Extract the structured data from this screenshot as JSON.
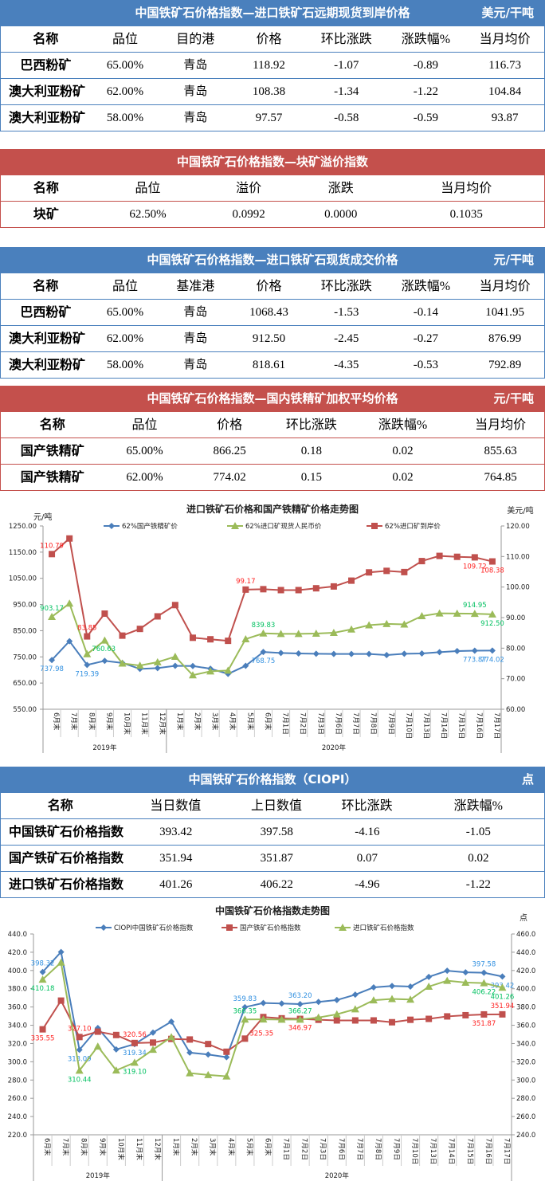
{
  "tables": [
    {
      "theme": "blue",
      "title": "中国铁矿石价格指数—进口铁矿石远期现货到岸价格",
      "unit": "美元/干吨",
      "columns": [
        "名称",
        "品位",
        "目的港",
        "价格",
        "环比涨跌",
        "涨跌幅%",
        "当月均价"
      ],
      "rows": [
        [
          "巴西粉矿",
          "65.00%",
          "青岛",
          "118.92",
          "-1.07",
          "-0.89",
          "116.73"
        ],
        [
          "澳大利亚粉矿",
          "62.00%",
          "青岛",
          "108.38",
          "-1.34",
          "-1.22",
          "104.84"
        ],
        [
          "澳大利亚粉矿",
          "58.00%",
          "青岛",
          "97.57",
          "-0.58",
          "-0.59",
          "93.87"
        ]
      ]
    },
    {
      "theme": "red",
      "title": "中国铁矿石价格指数—块矿溢价指数",
      "unit": "",
      "columns": [
        "名称",
        "品位",
        "溢价",
        "涨跌",
        "当月均价"
      ],
      "rows": [
        [
          "块矿",
          "62.50%",
          "0.0992",
          "0.0000",
          "0.1035"
        ]
      ]
    },
    {
      "theme": "blue",
      "title": "中国铁矿石价格指数—进口铁矿石现货成交价格",
      "unit": "元/干吨",
      "columns": [
        "名称",
        "品位",
        "基准港",
        "价格",
        "环比涨跌",
        "涨跌幅%",
        "当月均价"
      ],
      "rows": [
        [
          "巴西粉矿",
          "65.00%",
          "青岛",
          "1068.43",
          "-1.53",
          "-0.14",
          "1041.95"
        ],
        [
          "澳大利亚粉矿",
          "62.00%",
          "青岛",
          "912.50",
          "-2.45",
          "-0.27",
          "876.99"
        ],
        [
          "澳大利亚粉矿",
          "58.00%",
          "青岛",
          "818.61",
          "-4.35",
          "-0.53",
          "792.89"
        ]
      ]
    },
    {
      "theme": "red",
      "title": "中国铁矿石价格指数—国内铁精矿加权平均价格",
      "unit": "元/干吨",
      "columns": [
        "名称",
        "品位",
        "价格",
        "环比涨跌",
        "涨跌幅%",
        "当月均价"
      ],
      "rows": [
        [
          "国产铁精矿",
          "65.00%",
          "866.25",
          "0.18",
          "0.02",
          "855.63"
        ],
        [
          "国产铁精矿",
          "62.00%",
          "774.02",
          "0.15",
          "0.02",
          "764.85"
        ]
      ]
    },
    {
      "theme": "blue",
      "title": "中国铁矿石价格指数（CIOPI）",
      "unit": "点",
      "columns": [
        "名称",
        "当日数值",
        "上日数值",
        "环比涨跌",
        "涨跌幅%"
      ],
      "rows": [
        [
          "中国铁矿石价格指数",
          "393.42",
          "397.58",
          "-4.16",
          "-1.05"
        ],
        [
          "国产铁矿石价格指数",
          "351.94",
          "351.87",
          "0.07",
          "0.02"
        ],
        [
          "进口铁矿石价格指数",
          "401.26",
          "406.22",
          "-4.96",
          "-1.22"
        ]
      ]
    }
  ],
  "chart_data": [
    {
      "type": "line",
      "title": "进口铁矿石价格和国产铁精矿价格走势图",
      "ylabel": "元/吨",
      "y2label": "美元/吨",
      "ylim": [
        550,
        1250
      ],
      "yticks": [
        "550.00",
        "650.00",
        "750.00",
        "850.00",
        "950.00",
        "1050.00",
        "1150.00",
        "1250.00"
      ],
      "y2lim": [
        60,
        120
      ],
      "y2ticks": [
        "60.00",
        "70.00",
        "80.00",
        "90.00",
        "100.00",
        "110.00",
        "120.00"
      ],
      "categories": [
        "6月末",
        "7月末",
        "8月末",
        "9月末",
        "10月末",
        "11月末",
        "12月末",
        "1月末",
        "2月末",
        "3月末",
        "4月末",
        "5月末",
        "6月末",
        "7月1日",
        "7月2日",
        "7月3日",
        "7月6日",
        "7月7日",
        "7月8日",
        "7月9日",
        "7月10日",
        "7月13日",
        "7月14日",
        "7月15日",
        "7月16日",
        "7月17日"
      ],
      "groups": [
        {
          "label": "2019年",
          "from": 0,
          "to": 6
        },
        {
          "label": "2020年",
          "from": 7,
          "to": 25
        }
      ],
      "legend_position": "top",
      "series": [
        {
          "name": "62%国产铁精矿价",
          "axis": "left",
          "color": "#4a7ebb",
          "label_color": "#2f8fe0",
          "marker": "diamond",
          "values": [
            737.98,
            810,
            719.39,
            735,
            727,
            704,
            707,
            716,
            715,
            705,
            685,
            716,
            768.75,
            765,
            763,
            762,
            761,
            761,
            761,
            757,
            762,
            763,
            768,
            772,
            773.87,
            774.02
          ],
          "labels": [
            {
              "i": 0,
              "text": "737.98",
              "pos": "below"
            },
            {
              "i": 2,
              "text": "719.39",
              "pos": "below"
            },
            {
              "i": 12,
              "text": "768.75",
              "pos": "below"
            },
            {
              "i": 24,
              "text": "773.87",
              "pos": "below"
            },
            {
              "i": 25,
              "text": "774.02",
              "pos": "below"
            }
          ]
        },
        {
          "name": "62%进口矿现货人民币价",
          "axis": "left",
          "color": "#9bbb59",
          "label_color": "#00c060",
          "marker": "triangle",
          "values": [
            903.17,
            954,
            760.63,
            813,
            725,
            717,
            730,
            751,
            680,
            695,
            698,
            818,
            839.83,
            838,
            838,
            839,
            842,
            855,
            871,
            876,
            874,
            906,
            916.5,
            915.5,
            914.95,
            912.5
          ],
          "labels": [
            {
              "i": 0,
              "text": "903.17",
              "pos": "above"
            },
            {
              "i": 2,
              "text": "760.63",
              "pos": "right"
            },
            {
              "i": 12,
              "text": "839.83",
              "pos": "above"
            },
            {
              "i": 24,
              "text": "914.95",
              "pos": "above"
            },
            {
              "i": 25,
              "text": "912.50",
              "pos": "below"
            }
          ]
        },
        {
          "name": "62%进口矿到岸价",
          "axis": "right",
          "color": "#c0504d",
          "label_color": "#ff2020",
          "marker": "square",
          "values": [
            110.79,
            115.9,
            83.85,
            91.3,
            84.1,
            86.3,
            90.4,
            94.1,
            83.4,
            82.9,
            82.4,
            99.17,
            99.3,
            99.0,
            99.0,
            99.6,
            100.2,
            102.1,
            104.8,
            105.3,
            104.9,
            108.5,
            110.2,
            109.9,
            109.72,
            108.38
          ],
          "labels": [
            {
              "i": 0,
              "text": "110.79",
              "pos": "above"
            },
            {
              "i": 2,
              "text": "83.85",
              "pos": "above"
            },
            {
              "i": 11,
              "text": "99.17",
              "pos": "above"
            },
            {
              "i": 24,
              "text": "109.72",
              "pos": "below"
            },
            {
              "i": 25,
              "text": "108.38",
              "pos": "below"
            }
          ]
        }
      ]
    },
    {
      "type": "line",
      "title": "中国铁矿石价格指数走势图",
      "ylabel": "",
      "y2label": "点",
      "ylim": [
        220,
        440
      ],
      "yticks": [
        "220.0",
        "240.0",
        "260.0",
        "280.0",
        "300.0",
        "320.0",
        "340.0",
        "360.0",
        "380.0",
        "400.0",
        "420.0",
        "440.0"
      ],
      "y2lim": [
        240,
        460
      ],
      "y2ticks": [
        "240.0",
        "260.0",
        "280.0",
        "300.0",
        "320.0",
        "340.0",
        "360.0",
        "380.0",
        "400.0",
        "420.0",
        "440.0",
        "460.0"
      ],
      "categories": [
        "6月末",
        "7月末",
        "8月末",
        "9月末",
        "10月末",
        "11月末",
        "12月末",
        "1月末",
        "2月末",
        "3月末",
        "4月末",
        "5月末",
        "6月末",
        "7月1日",
        "7月2日",
        "7月3日",
        "7月6日",
        "7月7日",
        "7月8日",
        "7月9日",
        "7月10日",
        "7月13日",
        "7月14日",
        "7月15日",
        "7月16日",
        "7月17日"
      ],
      "groups": [
        {
          "label": "2019年",
          "from": 0,
          "to": 6
        },
        {
          "label": "2020年",
          "from": 7,
          "to": 25
        }
      ],
      "legend_position": "top",
      "series": [
        {
          "name": "CIOPI中国铁矿石价格指数",
          "axis": "left",
          "color": "#4a7ebb",
          "label_color": "#2f8fe0",
          "marker": "diamond",
          "values": [
            398.32,
            420.3,
            313.09,
            337,
            313.5,
            319.34,
            332,
            344,
            310,
            308,
            305,
            359.83,
            364.4,
            363.8,
            363.2,
            365.6,
            367.6,
            373.5,
            381.5,
            383,
            382.4,
            393,
            399.7,
            398,
            397.58,
            393.42
          ],
          "labels": [
            {
              "i": 0,
              "text": "398.32",
              "pos": "above"
            },
            {
              "i": 2,
              "text": "313.09",
              "pos": "below"
            },
            {
              "i": 5,
              "text": "319.34",
              "pos": "below"
            },
            {
              "i": 11,
              "text": "359.83",
              "pos": "above"
            },
            {
              "i": 14,
              "text": "363.20",
              "pos": "above"
            },
            {
              "i": 24,
              "text": "397.58",
              "pos": "above"
            },
            {
              "i": 25,
              "text": "393.42",
              "pos": "below"
            }
          ]
        },
        {
          "name": "国产铁矿石价格指数",
          "axis": "left",
          "color": "#c0504d",
          "label_color": "#ff2020",
          "marker": "square",
          "values": [
            335.55,
            367,
            327.1,
            333,
            329.3,
            320.56,
            321,
            325,
            324.4,
            319.4,
            311,
            325.35,
            349,
            347.6,
            346.97,
            346,
            345.3,
            345.3,
            345.3,
            343.3,
            346,
            347,
            349.7,
            351,
            351.87,
            351.94
          ],
          "labels": [
            {
              "i": 0,
              "text": "335.55",
              "pos": "below"
            },
            {
              "i": 2,
              "text": "327.10",
              "pos": "above"
            },
            {
              "i": 5,
              "text": "320.56",
              "pos": "above"
            },
            {
              "i": 11,
              "text": "325.35",
              "pos": "right"
            },
            {
              "i": 14,
              "text": "346.97",
              "pos": "below"
            },
            {
              "i": 24,
              "text": "351.87",
              "pos": "below"
            },
            {
              "i": 25,
              "text": "351.94",
              "pos": "above"
            }
          ]
        },
        {
          "name": "进口铁矿石价格指数",
          "axis": "right",
          "color": "#9bbb59",
          "label_color": "#00c060",
          "marker": "triangle",
          "values": [
            410.18,
            428.8,
            310.44,
            336.8,
            310.6,
            319.1,
            333.3,
            347,
            307.6,
            305.6,
            304.1,
            366.35,
            366.5,
            366.3,
            366.27,
            368.5,
            372,
            377.6,
            387.4,
            388.8,
            388.2,
            402.4,
            408.8,
            406.8,
            406.22,
            401.26
          ],
          "labels": [
            {
              "i": 0,
              "text": "410.18",
              "pos": "below"
            },
            {
              "i": 2,
              "text": "310.44",
              "pos": "below"
            },
            {
              "i": 5,
              "text": "319.10",
              "pos": "below"
            },
            {
              "i": 11,
              "text": "366.35",
              "pos": "above"
            },
            {
              "i": 14,
              "text": "366.27",
              "pos": "above"
            },
            {
              "i": 24,
              "text": "406.22",
              "pos": "below"
            },
            {
              "i": 25,
              "text": "401.26",
              "pos": "below"
            }
          ]
        }
      ]
    }
  ]
}
